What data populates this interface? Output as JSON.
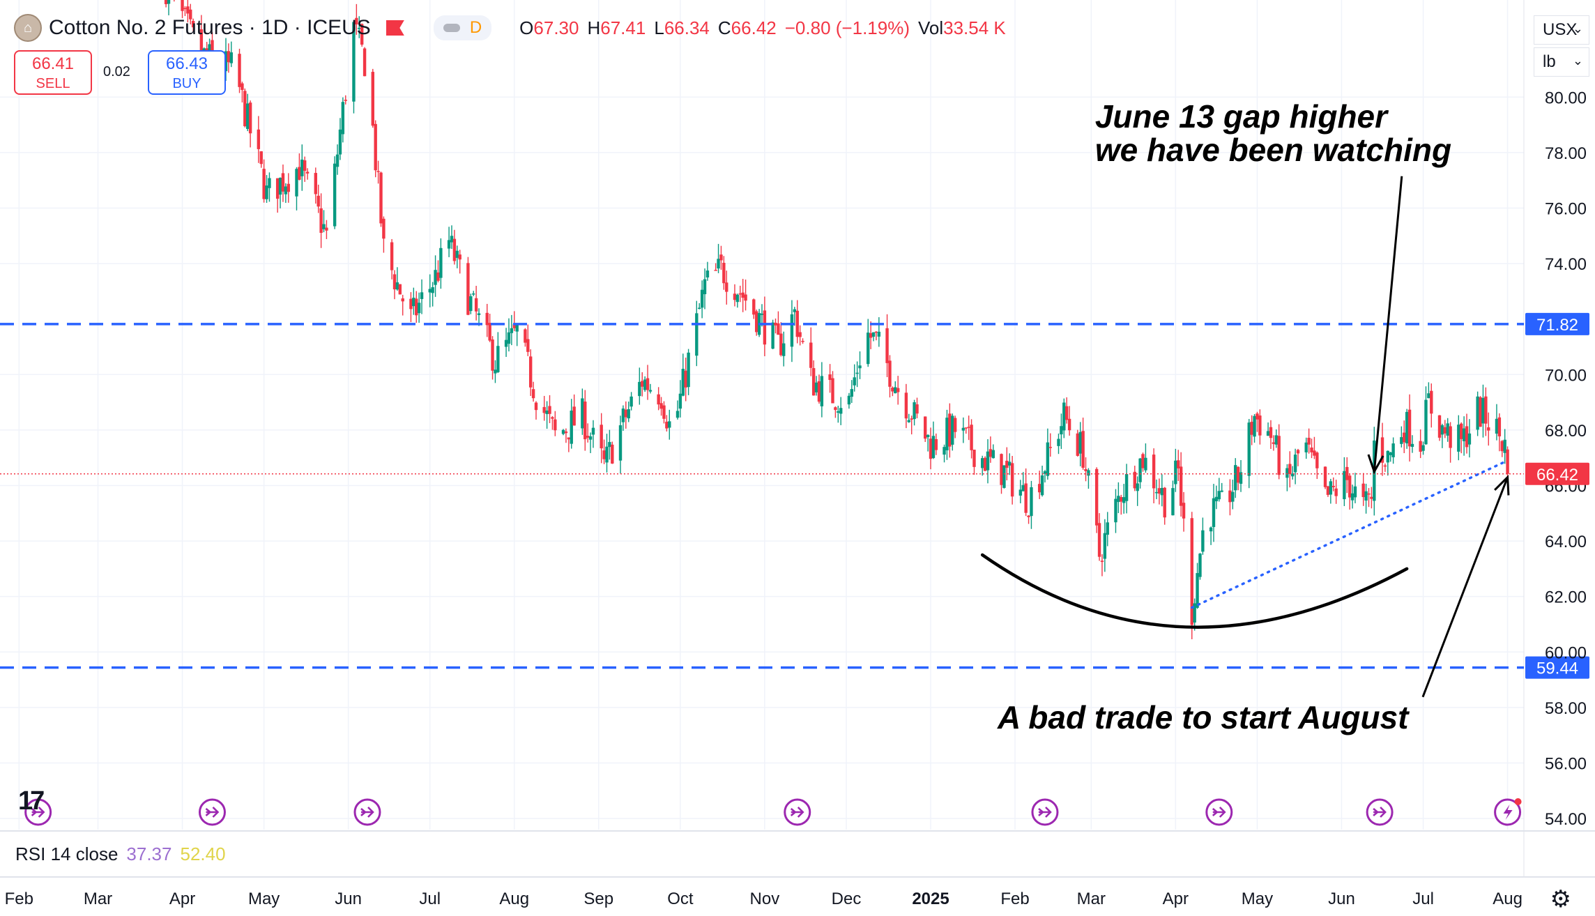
{
  "header": {
    "symbol": "Cotton No. 2 Futures · 1D · ICEUS",
    "session": "D",
    "ohlc": [
      {
        "k": "O",
        "v": "67.30"
      },
      {
        "k": "H",
        "v": "67.41"
      },
      {
        "k": "L",
        "v": "66.34"
      },
      {
        "k": "C",
        "v": "66.42"
      },
      {
        "k": "",
        "v": "−0.80 (−1.19%)"
      },
      {
        "k": "Vol",
        "v": "33.54 K"
      }
    ]
  },
  "trade": {
    "sell_price": "66.41",
    "sell_label": "SELL",
    "buy_price": "66.43",
    "buy_label": "BUY",
    "spread": "0.02"
  },
  "selectors": {
    "currency": "USX",
    "unit": "lb"
  },
  "rsi": {
    "label": "RSI 14 close",
    "value1": "37.37",
    "value2": "52.40"
  },
  "colors": {
    "up": "#089981",
    "down": "#f23645",
    "level": "#2962ff",
    "trend": "#2962ff",
    "annotation": "#000000",
    "event": "#9c27b0"
  },
  "icons": {
    "event": "event-arrow-icon",
    "alert": "lightning-icon",
    "settings": "gear-icon",
    "logo": "tradingview-logo"
  },
  "chart_data": {
    "type": "candlestick",
    "y_axis": {
      "min": 53.6,
      "max": 83.5,
      "ticks": [
        "80.00",
        "78.00",
        "76.00",
        "74.00",
        "70.00",
        "68.00",
        "66.00",
        "64.00",
        "62.00",
        "60.00",
        "58.00",
        "56.00",
        "54.00"
      ],
      "position": "right"
    },
    "x_axis": {
      "start": "2024-01-25",
      "end": "2025-08-07",
      "labels": [
        {
          "text": "Feb",
          "date": "2024-02-01"
        },
        {
          "text": "Mar",
          "date": "2024-03-01"
        },
        {
          "text": "Apr",
          "date": "2024-04-01"
        },
        {
          "text": "May",
          "date": "2024-05-01"
        },
        {
          "text": "Jun",
          "date": "2024-06-01"
        },
        {
          "text": "Jul",
          "date": "2024-07-01"
        },
        {
          "text": "Aug",
          "date": "2024-08-01"
        },
        {
          "text": "Sep",
          "date": "2024-09-01"
        },
        {
          "text": "Oct",
          "date": "2024-10-01"
        },
        {
          "text": "Nov",
          "date": "2024-11-01"
        },
        {
          "text": "Dec",
          "date": "2024-12-01"
        },
        {
          "text": "2025",
          "date": "2025-01-01",
          "bold": true
        },
        {
          "text": "Feb",
          "date": "2025-02-01"
        },
        {
          "text": "Mar",
          "date": "2025-03-01"
        },
        {
          "text": "Apr",
          "date": "2025-04-01"
        },
        {
          "text": "May",
          "date": "2025-05-01"
        },
        {
          "text": "Jun",
          "date": "2025-06-01"
        },
        {
          "text": "Jul",
          "date": "2025-07-01"
        },
        {
          "text": "Aug",
          "date": "2025-08-01"
        }
      ]
    },
    "close_path": [
      {
        "date": "2024-03-26",
        "close": 84.0
      },
      {
        "date": "2024-04-08",
        "close": 81.5
      },
      {
        "date": "2024-04-20",
        "close": 81.0
      },
      {
        "date": "2024-05-02",
        "close": 76.5
      },
      {
        "date": "2024-05-14",
        "close": 77.5
      },
      {
        "date": "2024-05-24",
        "close": 75.0
      },
      {
        "date": "2024-06-03",
        "close": 82.5
      },
      {
        "date": "2024-06-08",
        "close": 81.0
      },
      {
        "date": "2024-06-14",
        "close": 74.5
      },
      {
        "date": "2024-06-24",
        "close": 72.0
      },
      {
        "date": "2024-07-03",
        "close": 73.5
      },
      {
        "date": "2024-07-08",
        "close": 74.8
      },
      {
        "date": "2024-07-15",
        "close": 72.8
      },
      {
        "date": "2024-07-25",
        "close": 70.5
      },
      {
        "date": "2024-08-02",
        "close": 71.5
      },
      {
        "date": "2024-08-09",
        "close": 69.3
      },
      {
        "date": "2024-08-16",
        "close": 67.8
      },
      {
        "date": "2024-08-26",
        "close": 68.5
      },
      {
        "date": "2024-09-03",
        "close": 66.7
      },
      {
        "date": "2024-09-10",
        "close": 68.3
      },
      {
        "date": "2024-09-17",
        "close": 69.8
      },
      {
        "date": "2024-09-24",
        "close": 69.3
      },
      {
        "date": "2024-09-28",
        "close": 67.8
      },
      {
        "date": "2024-10-04",
        "close": 70.5
      },
      {
        "date": "2024-10-10",
        "close": 73.2
      },
      {
        "date": "2024-10-16",
        "close": 73.8
      },
      {
        "date": "2024-10-23",
        "close": 73.0
      },
      {
        "date": "2024-10-30",
        "close": 72.0
      },
      {
        "date": "2024-11-06",
        "close": 71.0
      },
      {
        "date": "2024-11-12",
        "close": 72.2
      },
      {
        "date": "2024-11-18",
        "close": 69.8
      },
      {
        "date": "2024-11-25",
        "close": 69.3
      },
      {
        "date": "2024-12-02",
        "close": 69.0
      },
      {
        "date": "2024-12-08",
        "close": 71.5
      },
      {
        "date": "2024-12-12",
        "close": 71.2
      },
      {
        "date": "2024-12-20",
        "close": 69.5
      },
      {
        "date": "2025-01-01",
        "close": 67.5
      },
      {
        "date": "2025-01-10",
        "close": 68.0
      },
      {
        "date": "2025-01-20",
        "close": 67.0
      },
      {
        "date": "2025-01-28",
        "close": 66.5
      },
      {
        "date": "2025-02-06",
        "close": 65.5
      },
      {
        "date": "2025-02-13",
        "close": 67.0
      },
      {
        "date": "2025-02-19",
        "close": 68.5
      },
      {
        "date": "2025-02-26",
        "close": 67.2
      },
      {
        "date": "2025-03-04",
        "close": 63.5
      },
      {
        "date": "2025-03-12",
        "close": 65.8
      },
      {
        "date": "2025-03-20",
        "close": 67.0
      },
      {
        "date": "2025-03-28",
        "close": 65.5
      },
      {
        "date": "2025-04-02",
        "close": 66.5
      },
      {
        "date": "2025-04-07",
        "close": 61.5
      },
      {
        "date": "2025-04-12",
        "close": 65.0
      },
      {
        "date": "2025-04-18",
        "close": 65.2
      },
      {
        "date": "2025-04-24",
        "close": 66.3
      },
      {
        "date": "2025-04-30",
        "close": 68.5
      },
      {
        "date": "2025-05-06",
        "close": 67.8
      },
      {
        "date": "2025-05-12",
        "close": 66.0
      },
      {
        "date": "2025-05-18",
        "close": 67.6
      },
      {
        "date": "2025-05-26",
        "close": 65.5
      },
      {
        "date": "2025-06-03",
        "close": 66.2
      },
      {
        "date": "2025-06-09",
        "close": 65.2
      },
      {
        "date": "2025-06-12",
        "close": 65.5
      },
      {
        "date": "2025-06-13",
        "close": 67.5
      },
      {
        "date": "2025-06-18",
        "close": 67.0
      },
      {
        "date": "2025-06-24",
        "close": 68.2
      },
      {
        "date": "2025-06-30",
        "close": 67.6
      },
      {
        "date": "2025-07-03",
        "close": 69.0
      },
      {
        "date": "2025-07-08",
        "close": 68.0
      },
      {
        "date": "2025-07-15",
        "close": 67.5
      },
      {
        "date": "2025-07-21",
        "close": 68.7
      },
      {
        "date": "2025-07-27",
        "close": 68.2
      },
      {
        "date": "2025-07-31",
        "close": 67.4
      },
      {
        "date": "2025-08-01",
        "close": 66.42
      }
    ],
    "levels": [
      {
        "value": 71.82,
        "label": "71.82"
      },
      {
        "value": 59.44,
        "label": "59.44"
      }
    ],
    "last_price": {
      "value": 66.42,
      "label": "66.42"
    },
    "trendline": [
      {
        "date": "2025-04-07",
        "value": 61.6
      },
      {
        "date": "2025-08-01",
        "value": 66.9
      }
    ],
    "arc": {
      "start": {
        "date": "2025-01-20",
        "value": 63.5
      },
      "bottom": {
        "date": "2025-04-05",
        "value": 60.9
      },
      "end": {
        "date": "2025-06-25",
        "value": 63.0
      }
    },
    "annotations": [
      {
        "lines": [
          "June 13 gap higher",
          "we have been watching"
        ],
        "anchor": {
          "date": "2025-06-18",
          "value": 77.4
        },
        "arrow_to": {
          "date": "2025-06-13",
          "value": 66.5
        }
      },
      {
        "lines": [
          "A bad trade to start August"
        ],
        "anchor": {
          "date": "2025-04-15",
          "value": 57.5
        },
        "arrow_to": {
          "date": "2025-08-01",
          "value": 66.3
        }
      }
    ],
    "event_markers": [
      "2024-02-08",
      "2024-04-12",
      "2024-06-08",
      "2024-11-13",
      "2025-02-12",
      "2025-04-17",
      "2025-06-15"
    ],
    "alert_marker": "2025-08-01"
  }
}
